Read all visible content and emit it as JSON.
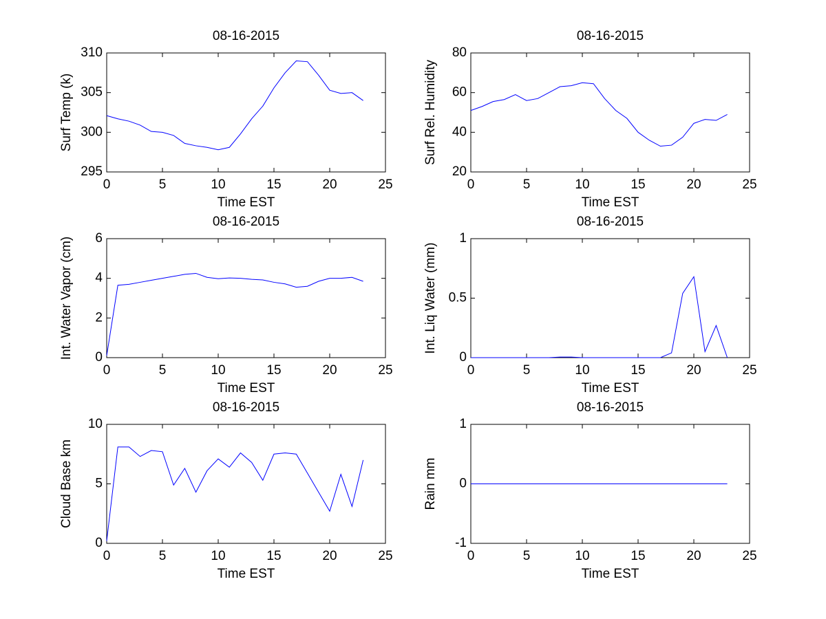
{
  "chart_data": [
    {
      "type": "line",
      "title": "08-16-2015",
      "xlabel": "Time EST",
      "ylabel": "Surf Temp (k)",
      "x": [
        0,
        1,
        2,
        3,
        4,
        5,
        6,
        7,
        8,
        9,
        10,
        11,
        12,
        13,
        14,
        15,
        16,
        17,
        18,
        19,
        20,
        21,
        22,
        23
      ],
      "series": [
        {
          "color": "#0000ff",
          "values": [
            302.1,
            301.7,
            301.4,
            300.9,
            300.1,
            300.0,
            299.6,
            298.6,
            298.3,
            298.1,
            297.8,
            298.1,
            299.8,
            301.7,
            303.3,
            305.6,
            307.5,
            309.0,
            308.9,
            307.2,
            305.3,
            304.9,
            305.0,
            304.0
          ]
        }
      ],
      "xlim": [
        0,
        25
      ],
      "xticks": [
        0,
        5,
        10,
        15,
        20,
        25
      ],
      "ylim": [
        295,
        310
      ],
      "yticks": [
        295,
        300,
        305,
        310
      ]
    },
    {
      "type": "line",
      "title": "08-16-2015",
      "xlabel": "Time EST",
      "ylabel": "Surf Rel. Humidity",
      "x": [
        0,
        1,
        2,
        3,
        4,
        5,
        6,
        7,
        8,
        9,
        10,
        11,
        12,
        13,
        14,
        15,
        16,
        17,
        18,
        19,
        20,
        21,
        22,
        23
      ],
      "series": [
        {
          "color": "#0000ff",
          "values": [
            51,
            53,
            55.5,
            56.5,
            59,
            56,
            57,
            60,
            63,
            63.5,
            65,
            64.5,
            57,
            51,
            47,
            40,
            36,
            33,
            33.5,
            37.5,
            44.5,
            46.5,
            46,
            49
          ]
        }
      ],
      "xlim": [
        0,
        25
      ],
      "xticks": [
        0,
        5,
        10,
        15,
        20,
        25
      ],
      "ylim": [
        20,
        80
      ],
      "yticks": [
        20,
        40,
        60,
        80
      ]
    },
    {
      "type": "line",
      "title": "08-16-2015",
      "xlabel": "Time EST",
      "ylabel": "Int. Water Vapor (cm)",
      "x": [
        0,
        1,
        2,
        3,
        4,
        5,
        6,
        7,
        8,
        9,
        10,
        11,
        12,
        13,
        14,
        15,
        16,
        17,
        18,
        19,
        20,
        21,
        22,
        23
      ],
      "series": [
        {
          "color": "#0000ff",
          "values": [
            0.1,
            3.65,
            3.7,
            3.8,
            3.9,
            4.0,
            4.1,
            4.2,
            4.25,
            4.05,
            3.98,
            4.02,
            4.0,
            3.95,
            3.92,
            3.8,
            3.72,
            3.55,
            3.6,
            3.85,
            4.0,
            4.0,
            4.05,
            3.85
          ]
        }
      ],
      "xlim": [
        0,
        25
      ],
      "xticks": [
        0,
        5,
        10,
        15,
        20,
        25
      ],
      "ylim": [
        0,
        6
      ],
      "yticks": [
        0,
        2,
        4,
        6
      ]
    },
    {
      "type": "line",
      "title": "08-16-2015",
      "xlabel": "Time EST",
      "ylabel": "Int. Liq Water (mm)",
      "x": [
        0,
        1,
        2,
        3,
        4,
        5,
        6,
        7,
        8,
        9,
        10,
        11,
        12,
        13,
        14,
        15,
        16,
        17,
        18,
        19,
        20,
        21,
        22,
        23
      ],
      "series": [
        {
          "color": "#0000ff",
          "values": [
            0,
            0,
            0,
            0,
            0,
            0,
            0,
            0,
            0.005,
            0.005,
            0,
            0,
            0,
            0,
            0,
            0,
            0,
            0,
            0.04,
            0.54,
            0.68,
            0.05,
            0.27,
            0
          ]
        }
      ],
      "xlim": [
        0,
        25
      ],
      "xticks": [
        0,
        5,
        10,
        15,
        20,
        25
      ],
      "ylim": [
        0,
        1
      ],
      "yticks": [
        0,
        0.5,
        1
      ]
    },
    {
      "type": "line",
      "title": "08-16-2015",
      "xlabel": "Time EST",
      "ylabel": "Cloud Base km",
      "x": [
        0,
        1,
        2,
        3,
        4,
        5,
        6,
        7,
        8,
        9,
        10,
        11,
        12,
        13,
        14,
        15,
        16,
        17,
        18,
        19,
        20,
        21,
        22,
        23
      ],
      "series": [
        {
          "color": "#0000ff",
          "values": [
            0.2,
            8.1,
            8.1,
            7.3,
            7.8,
            7.7,
            4.9,
            6.3,
            4.3,
            6.1,
            7.1,
            6.4,
            7.6,
            6.8,
            5.3,
            7.5,
            7.6,
            7.5,
            5.9,
            4.3,
            2.7,
            5.8,
            3.1,
            7.0
          ]
        }
      ],
      "xlim": [
        0,
        25
      ],
      "xticks": [
        0,
        5,
        10,
        15,
        20,
        25
      ],
      "ylim": [
        0,
        10
      ],
      "yticks": [
        0,
        5,
        10
      ]
    },
    {
      "type": "line",
      "title": "08-16-2015",
      "xlabel": "Time EST",
      "ylabel": "Rain mm",
      "x": [
        0,
        1,
        2,
        3,
        4,
        5,
        6,
        7,
        8,
        9,
        10,
        11,
        12,
        13,
        14,
        15,
        16,
        17,
        18,
        19,
        20,
        21,
        22,
        23
      ],
      "series": [
        {
          "color": "#0000ff",
          "values": [
            0,
            0,
            0,
            0,
            0,
            0,
            0,
            0,
            0,
            0,
            0,
            0,
            0,
            0,
            0,
            0,
            0,
            0,
            0,
            0,
            0,
            0,
            0,
            0
          ]
        }
      ],
      "xlim": [
        0,
        25
      ],
      "xticks": [
        0,
        5,
        10,
        15,
        20,
        25
      ],
      "ylim": [
        -1,
        1
      ],
      "yticks": [
        -1,
        0,
        1
      ]
    }
  ]
}
